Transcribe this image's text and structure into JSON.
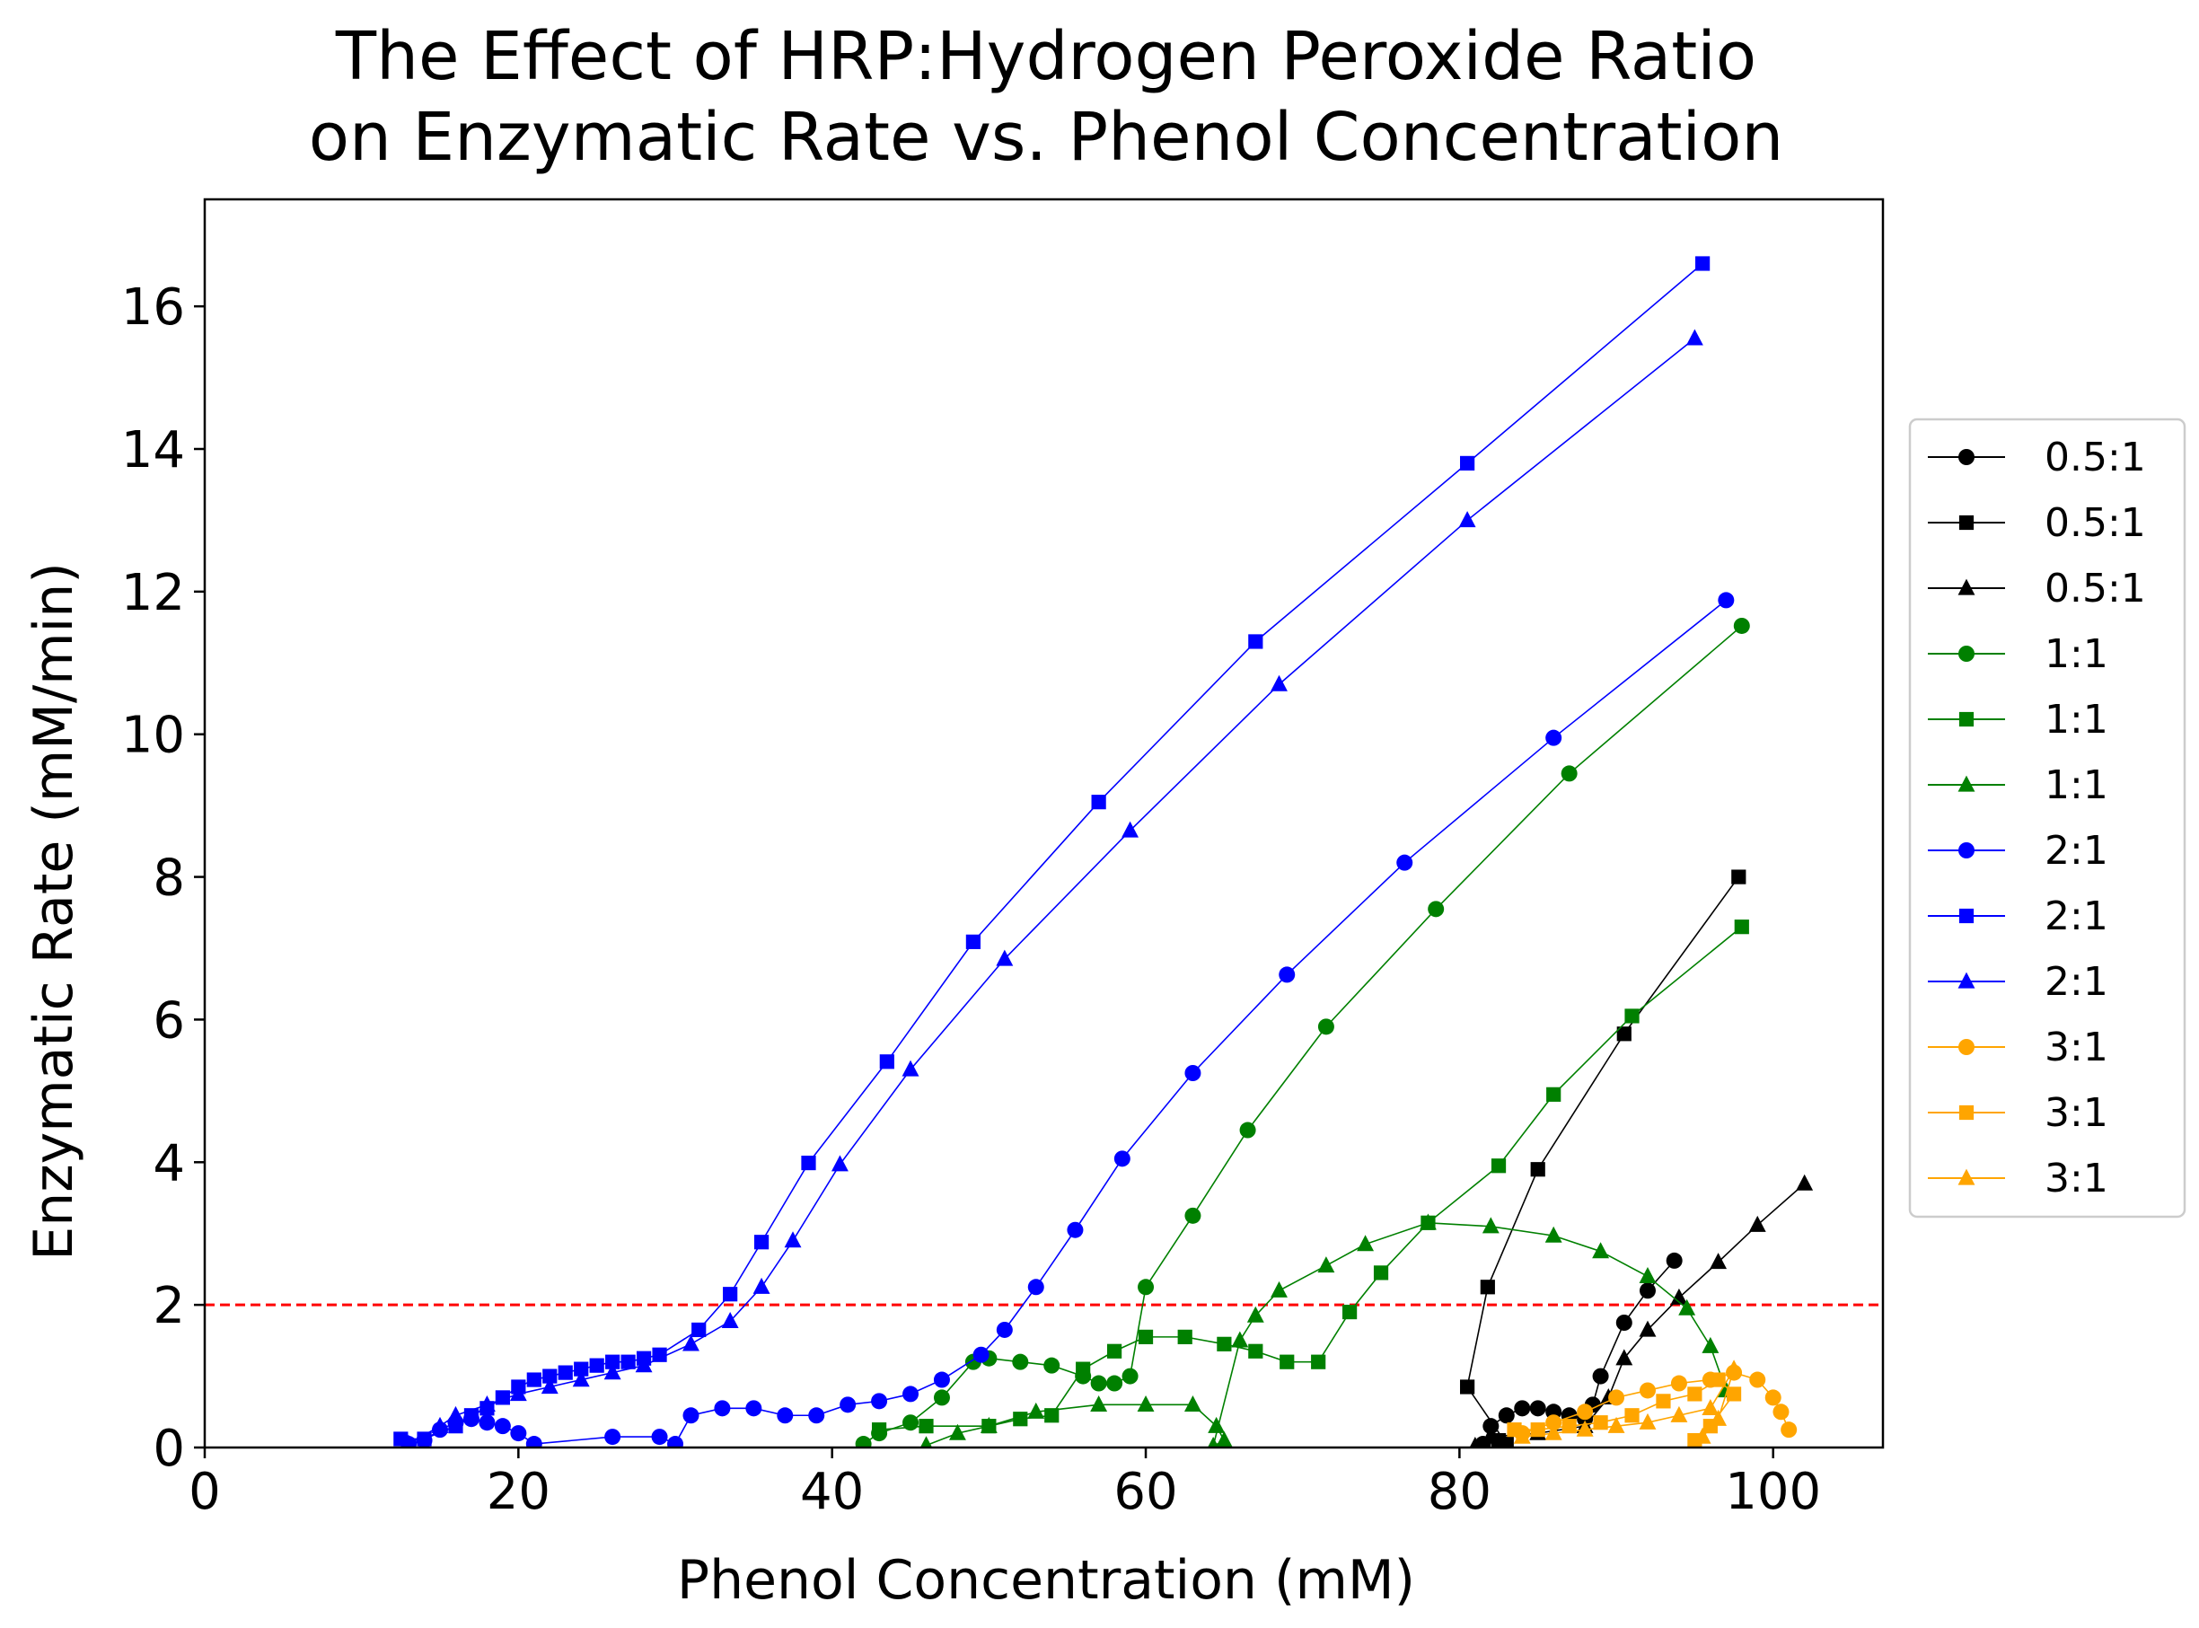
{
  "chart_data": {
    "type": "line",
    "title_line1": "The Effect of HRP:Hydrogen Peroxide Ratio",
    "title_line2": "on Enzymatic Rate vs. Phenol Concentration",
    "xlabel": "Phenol Concentration (mM)",
    "ylabel": "Enzymatic Rate (mM/min)",
    "xlim": [
      0,
      107
    ],
    "ylim": [
      0,
      17.5
    ],
    "xticks": [
      0,
      20,
      40,
      60,
      80,
      100
    ],
    "yticks": [
      0,
      2,
      4,
      6,
      8,
      10,
      12,
      14,
      16
    ],
    "grid": false,
    "legend_position": "outside right, center",
    "reference_line": {
      "y": 2,
      "color": "#ff0000",
      "style": "dashed"
    },
    "series": [
      {
        "name": "0.5:1",
        "color": "#000000",
        "marker": "circle",
        "points": [
          [
            81.5,
            0.05
          ],
          [
            82,
            0.3
          ],
          [
            83,
            0.45
          ],
          [
            84,
            0.55
          ],
          [
            85,
            0.55
          ],
          [
            86,
            0.5
          ],
          [
            87,
            0.45
          ],
          [
            88,
            0.4
          ],
          [
            88.5,
            0.6
          ],
          [
            89,
            1.0
          ],
          [
            90.5,
            1.75
          ],
          [
            92,
            2.2
          ],
          [
            93.7,
            2.62
          ]
        ]
      },
      {
        "name": "0.5:1",
        "color": "#000000",
        "marker": "square",
        "points": [
          [
            82.5,
            0.1
          ],
          [
            83,
            0.05
          ],
          [
            80.5,
            0.85
          ],
          [
            81.8,
            2.25
          ],
          [
            85,
            3.9
          ],
          [
            90.5,
            5.8
          ],
          [
            97.8,
            8.0
          ]
        ]
      },
      {
        "name": "0.5:1",
        "color": "#000000",
        "marker": "triangle",
        "points": [
          [
            81,
            0.02
          ],
          [
            82,
            0.15
          ],
          [
            85,
            0.2
          ],
          [
            88,
            0.3
          ],
          [
            89.5,
            0.7
          ],
          [
            90.5,
            1.25
          ],
          [
            92,
            1.65
          ],
          [
            94,
            2.1
          ],
          [
            96.5,
            2.6
          ],
          [
            99,
            3.12
          ],
          [
            102,
            3.7
          ]
        ]
      },
      {
        "name": "1:1",
        "color": "#008000",
        "marker": "circle",
        "points": [
          [
            42,
            0.05
          ],
          [
            43,
            0.2
          ],
          [
            45,
            0.35
          ],
          [
            47,
            0.7
          ],
          [
            49,
            1.2
          ],
          [
            50,
            1.25
          ],
          [
            52,
            1.2
          ],
          [
            54,
            1.15
          ],
          [
            56,
            1.0
          ],
          [
            57,
            0.9
          ],
          [
            58,
            0.9
          ],
          [
            59,
            1.0
          ],
          [
            60,
            2.25
          ],
          [
            63,
            3.25
          ],
          [
            66.5,
            4.45
          ],
          [
            71.5,
            5.9
          ],
          [
            78.5,
            7.55
          ],
          [
            87,
            9.45
          ],
          [
            98,
            11.52
          ]
        ]
      },
      {
        "name": "1:1",
        "color": "#008000",
        "marker": "square",
        "points": [
          [
            43,
            0.25
          ],
          [
            46,
            0.3
          ],
          [
            50,
            0.3
          ],
          [
            52,
            0.4
          ],
          [
            54,
            0.45
          ],
          [
            56,
            1.1
          ],
          [
            58,
            1.35
          ],
          [
            60,
            1.55
          ],
          [
            62.5,
            1.55
          ],
          [
            65,
            1.45
          ],
          [
            67,
            1.35
          ],
          [
            69,
            1.2
          ],
          [
            71,
            1.2
          ],
          [
            73,
            1.9
          ],
          [
            75,
            2.45
          ],
          [
            78,
            3.15
          ],
          [
            82.5,
            3.95
          ],
          [
            86,
            4.95
          ],
          [
            91,
            6.05
          ],
          [
            98,
            7.3
          ]
        ]
      },
      {
        "name": "1:1",
        "color": "#008000",
        "marker": "triangle",
        "points": [
          [
            46,
            0.03
          ],
          [
            48,
            0.2
          ],
          [
            50,
            0.3
          ],
          [
            53,
            0.5
          ],
          [
            57,
            0.6
          ],
          [
            60,
            0.6
          ],
          [
            63,
            0.6
          ],
          [
            64.5,
            0.3
          ],
          [
            65,
            0.1
          ],
          [
            64.3,
            0.02
          ],
          [
            66,
            1.5
          ],
          [
            67,
            1.85
          ],
          [
            68.5,
            2.2
          ],
          [
            71.5,
            2.55
          ],
          [
            74,
            2.85
          ],
          [
            78,
            3.15
          ],
          [
            82,
            3.1
          ],
          [
            86,
            2.97
          ],
          [
            89,
            2.75
          ],
          [
            92,
            2.4
          ],
          [
            94.5,
            1.95
          ],
          [
            96,
            1.42
          ],
          [
            97,
            0.8
          ]
        ]
      },
      {
        "name": "2:1",
        "color": "#0000ff",
        "marker": "circle",
        "points": [
          [
            13,
            0.05
          ],
          [
            14,
            0.1
          ],
          [
            15,
            0.25
          ],
          [
            16,
            0.35
          ],
          [
            17,
            0.4
          ],
          [
            18,
            0.35
          ],
          [
            19,
            0.3
          ],
          [
            20,
            0.2
          ],
          [
            21,
            0.05
          ],
          [
            26,
            0.15
          ],
          [
            29,
            0.15
          ],
          [
            30,
            0.05
          ],
          [
            31,
            0.45
          ],
          [
            33,
            0.55
          ],
          [
            35,
            0.55
          ],
          [
            37,
            0.45
          ],
          [
            39,
            0.45
          ],
          [
            41,
            0.6
          ],
          [
            43,
            0.65
          ],
          [
            45,
            0.75
          ],
          [
            47,
            0.95
          ],
          [
            49.5,
            1.3
          ],
          [
            51,
            1.65
          ],
          [
            53,
            2.25
          ],
          [
            55.5,
            3.05
          ],
          [
            58.5,
            4.05
          ],
          [
            63,
            5.25
          ],
          [
            69,
            6.63
          ],
          [
            76.5,
            8.2
          ],
          [
            86,
            9.95
          ],
          [
            97,
            11.88
          ]
        ]
      },
      {
        "name": "2:1",
        "color": "#0000ff",
        "marker": "square",
        "points": [
          [
            12.5,
            0.12
          ],
          [
            14,
            0.12
          ],
          [
            16,
            0.3
          ],
          [
            17,
            0.45
          ],
          [
            18,
            0.55
          ],
          [
            19,
            0.7
          ],
          [
            20,
            0.85
          ],
          [
            21,
            0.95
          ],
          [
            22,
            1.0
          ],
          [
            23,
            1.05
          ],
          [
            24,
            1.1
          ],
          [
            25,
            1.15
          ],
          [
            26,
            1.2
          ],
          [
            27,
            1.2
          ],
          [
            28,
            1.25
          ],
          [
            29,
            1.3
          ],
          [
            31.5,
            1.65
          ],
          [
            33.5,
            2.15
          ],
          [
            35.5,
            2.88
          ],
          [
            38.5,
            3.99
          ],
          [
            43.5,
            5.41
          ],
          [
            49,
            7.09
          ],
          [
            57,
            9.05
          ],
          [
            67,
            11.3
          ],
          [
            80.5,
            13.8
          ],
          [
            95.5,
            16.6
          ]
        ]
      },
      {
        "name": "2:1",
        "color": "#0000ff",
        "marker": "triangle",
        "points": [
          [
            13,
            0.05
          ],
          [
            15,
            0.3
          ],
          [
            16,
            0.45
          ],
          [
            18,
            0.6
          ],
          [
            20,
            0.75
          ],
          [
            22,
            0.85
          ],
          [
            24,
            0.95
          ],
          [
            26,
            1.05
          ],
          [
            28,
            1.15
          ],
          [
            31,
            1.45
          ],
          [
            33.5,
            1.77
          ],
          [
            35.5,
            2.25
          ],
          [
            37.5,
            2.9
          ],
          [
            40.5,
            3.97
          ],
          [
            45,
            5.3
          ],
          [
            51,
            6.85
          ],
          [
            59,
            8.65
          ],
          [
            68.5,
            10.7
          ],
          [
            80.5,
            13.0
          ],
          [
            95,
            15.55
          ]
        ]
      },
      {
        "name": "3:1",
        "color": "#ffa500",
        "marker": "circle",
        "points": [
          [
            84,
            0.2
          ],
          [
            86,
            0.35
          ],
          [
            88,
            0.5
          ],
          [
            90,
            0.7
          ],
          [
            92,
            0.8
          ],
          [
            94,
            0.9
          ],
          [
            96,
            0.95
          ],
          [
            97.5,
            1.05
          ],
          [
            99,
            0.95
          ],
          [
            100,
            0.7
          ],
          [
            100.5,
            0.5
          ],
          [
            101,
            0.25
          ]
        ]
      },
      {
        "name": "3:1",
        "color": "#ffa500",
        "marker": "square",
        "points": [
          [
            83.5,
            0.25
          ],
          [
            85,
            0.25
          ],
          [
            87,
            0.3
          ],
          [
            89,
            0.35
          ],
          [
            91,
            0.45
          ],
          [
            93,
            0.65
          ],
          [
            95,
            0.75
          ],
          [
            96.5,
            0.95
          ],
          [
            97.5,
            0.75
          ],
          [
            96,
            0.3
          ],
          [
            95,
            0.1
          ]
        ]
      },
      {
        "name": "3:1",
        "color": "#ffa500",
        "marker": "triangle",
        "points": [
          [
            84,
            0.15
          ],
          [
            86,
            0.2
          ],
          [
            88,
            0.25
          ],
          [
            90,
            0.3
          ],
          [
            92,
            0.35
          ],
          [
            94,
            0.45
          ],
          [
            96,
            0.55
          ],
          [
            97.5,
            1.1
          ],
          [
            96.5,
            0.4
          ],
          [
            95.5,
            0.15
          ]
        ]
      }
    ]
  }
}
